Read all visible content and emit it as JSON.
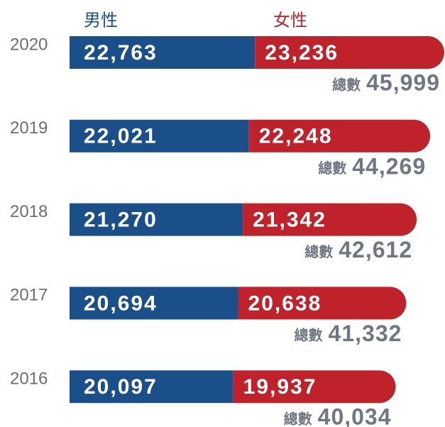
{
  "chart_data": {
    "type": "bar",
    "orientation": "horizontal",
    "stacked": true,
    "categories": [
      "2020",
      "2019",
      "2018",
      "2017",
      "2016"
    ],
    "series": [
      {
        "name": "男性",
        "color": "#1b4f8a",
        "values": [
          22763,
          22021,
          21270,
          20694,
          20097
        ],
        "value_labels": [
          "22,763",
          "22,021",
          "21,270",
          "20,694",
          "20,097"
        ]
      },
      {
        "name": "女性",
        "color": "#c0222c",
        "values": [
          23236,
          22248,
          21342,
          20638,
          19937
        ],
        "value_labels": [
          "23,236",
          "22,248",
          "21,342",
          "20,638",
          "19,937"
        ]
      }
    ],
    "total_label": "總數",
    "totals": [
      45999,
      44269,
      42612,
      41332,
      40034
    ],
    "totals_labels": [
      "45,999",
      "44,269",
      "42,612",
      "41,332",
      "40,034"
    ],
    "xlim": [
      0,
      46000
    ]
  }
}
